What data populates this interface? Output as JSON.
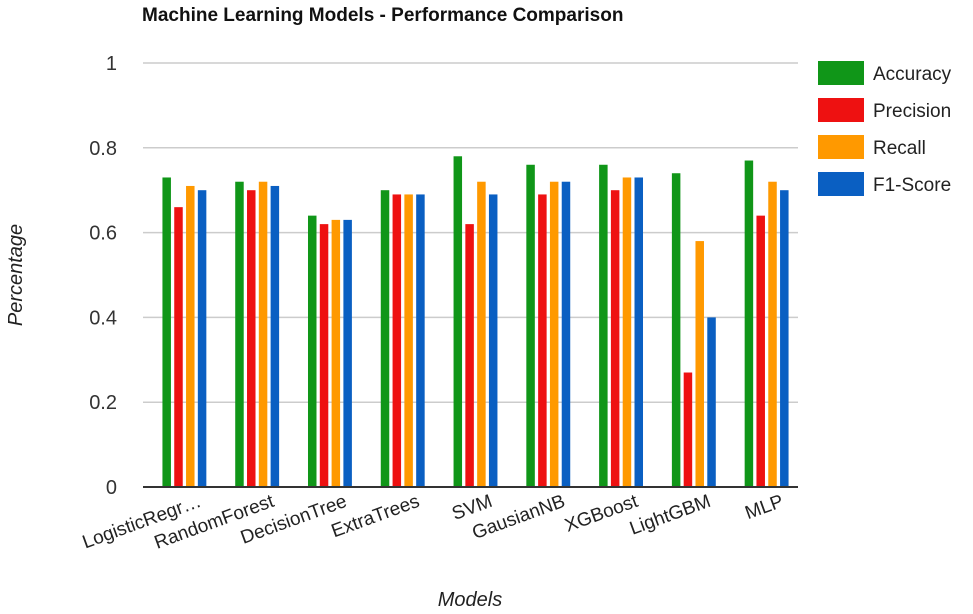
{
  "chart_data": {
    "type": "bar",
    "title": "Machine Learning Models - Performance Comparison",
    "xlabel": "Models",
    "ylabel": "Percentage",
    "ylim": [
      0,
      1
    ],
    "yticks": [
      "0",
      "0.2",
      "0.4",
      "0.6",
      "0.8",
      "1"
    ],
    "categories": [
      "LogisticRegr…",
      "RandomForest",
      "DecisionTree",
      "ExtraTrees",
      "SVM",
      "GausianNB",
      "XGBoost",
      "LightGBM",
      "MLP"
    ],
    "series": [
      {
        "name": "Accuracy",
        "color": "#109618",
        "values": [
          0.73,
          0.72,
          0.64,
          0.7,
          0.78,
          0.76,
          0.76,
          0.74,
          0.77
        ]
      },
      {
        "name": "Precision",
        "color": "#ee1111",
        "values": [
          0.66,
          0.7,
          0.62,
          0.69,
          0.62,
          0.69,
          0.7,
          0.27,
          0.64
        ]
      },
      {
        "name": "Recall",
        "color": "#ff9900",
        "values": [
          0.71,
          0.72,
          0.63,
          0.69,
          0.72,
          0.72,
          0.73,
          0.58,
          0.72
        ]
      },
      {
        "name": "F1-Score",
        "color": "#0a5fc2",
        "values": [
          0.7,
          0.71,
          0.63,
          0.69,
          0.69,
          0.72,
          0.73,
          0.4,
          0.7
        ]
      }
    ],
    "legend_position": "right",
    "grid": true
  }
}
